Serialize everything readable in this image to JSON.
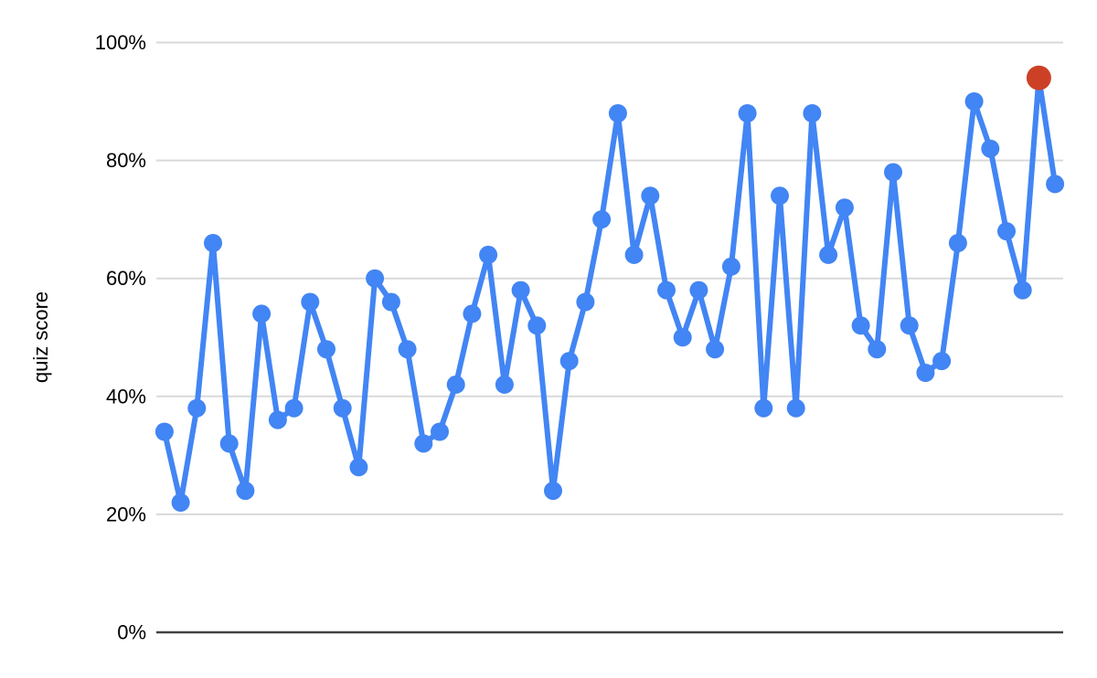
{
  "chart_data": {
    "type": "line",
    "title": "",
    "xlabel": "",
    "ylabel": "quiz score",
    "ylim": [
      0,
      100
    ],
    "grid": "horizontal",
    "legend": "none",
    "x_axis_labels": "none",
    "yticks": [
      {
        "value": 0,
        "label": "0%"
      },
      {
        "value": 20,
        "label": "20%"
      },
      {
        "value": 40,
        "label": "40%"
      },
      {
        "value": 60,
        "label": "60%"
      },
      {
        "value": 80,
        "label": "80%"
      },
      {
        "value": 100,
        "label": "100%"
      }
    ],
    "series": [
      {
        "name": "quiz score",
        "color": "#4285f4",
        "marker": "circle",
        "values": [
          34,
          22,
          38,
          66,
          32,
          24,
          54,
          36,
          38,
          56,
          48,
          38,
          28,
          60,
          56,
          48,
          32,
          34,
          42,
          54,
          64,
          42,
          58,
          52,
          24,
          46,
          56,
          70,
          88,
          64,
          74,
          58,
          50,
          58,
          48,
          62,
          88,
          38,
          74,
          38,
          88,
          64,
          72,
          52,
          48,
          78,
          52,
          44,
          46,
          66,
          90,
          82,
          68,
          58,
          94,
          76
        ],
        "highlight": {
          "index": 54,
          "value": 94,
          "color": "#cc4125"
        }
      }
    ]
  },
  "colors": {
    "background": "#ffffff",
    "series_line": "#4285f4",
    "highlight_point": "#cc4125",
    "gridline": "#d9d9d9",
    "axis_line": "#424242",
    "text": "#000000"
  }
}
